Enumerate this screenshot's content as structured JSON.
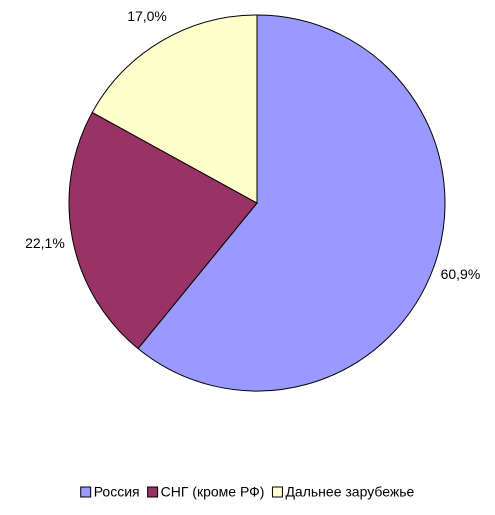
{
  "chart_data": {
    "type": "pie",
    "categories": [
      "Россия",
      "СНГ (кроме РФ)",
      "Дальнее зарубежье"
    ],
    "values": [
      60.9,
      22.1,
      17.0
    ],
    "value_labels": [
      "60,9%",
      "22,1%",
      "17,0%"
    ],
    "colors": [
      "#9999ff",
      "#993366",
      "#ffffcc"
    ],
    "legend": "bottom"
  }
}
